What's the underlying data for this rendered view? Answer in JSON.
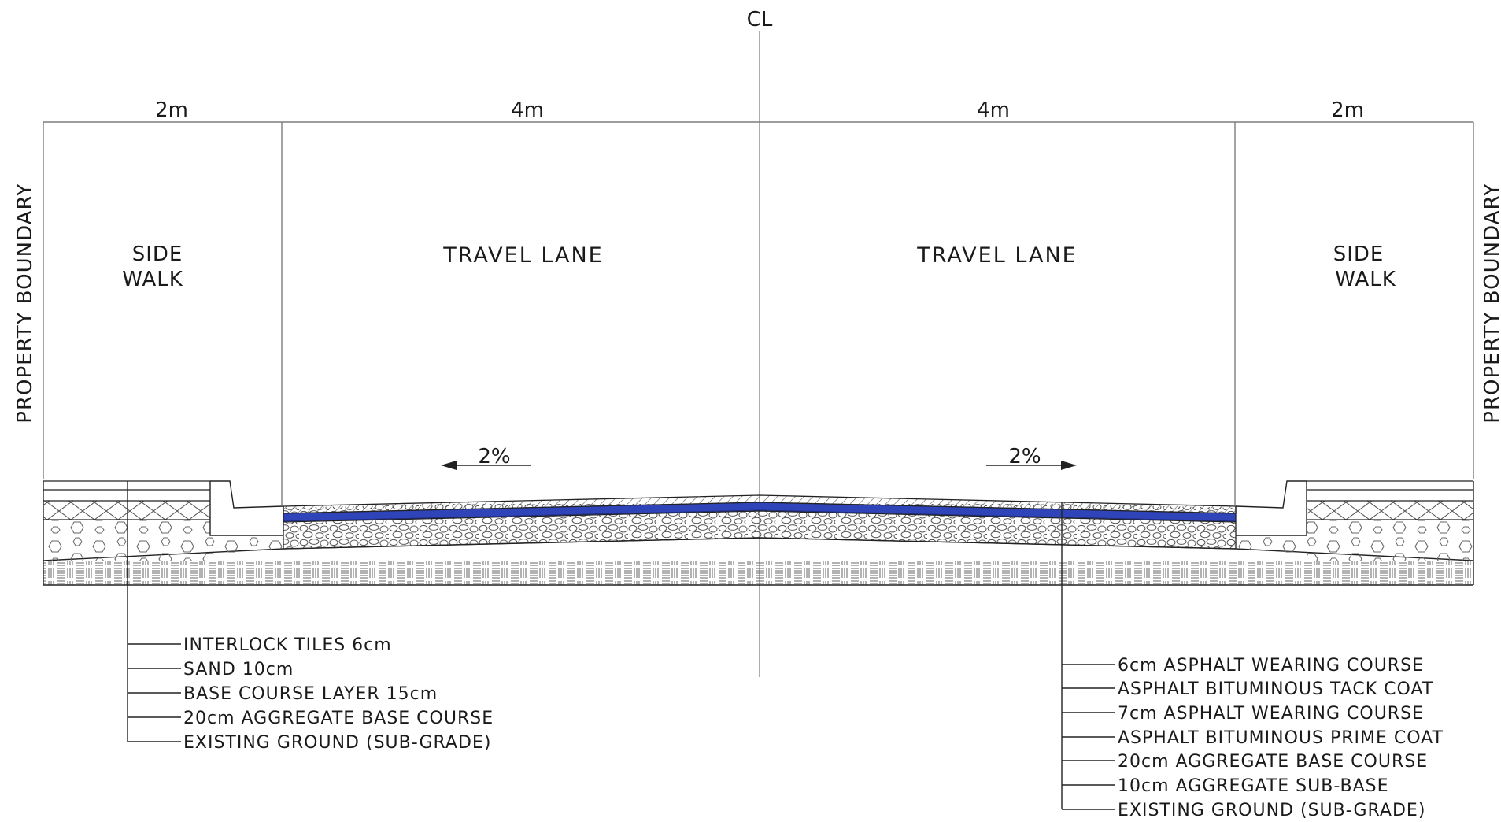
{
  "centerline_label": "CL",
  "dimensions": [
    "2m",
    "4m",
    "4m",
    "2m"
  ],
  "zones": {
    "left_sidewalk": [
      "SIDE",
      "WALK"
    ],
    "left_lane": "TRAVEL LANE",
    "right_lane": "TRAVEL LANE",
    "right_sidewalk": [
      "SIDE",
      "WALK"
    ]
  },
  "boundary_label": "PROPERTY BOUNDARY",
  "cross_slope": {
    "left": "2%",
    "right": "2%"
  },
  "sidewalk_layers": [
    "INTERLOCK TILES 6cm",
    "SAND 10cm",
    "BASE COURSE LAYER 15cm",
    "20cm  AGGREGATE BASE COURSE",
    "EXISTING GROUND (SUB-GRADE)"
  ],
  "roadway_layers": [
    "6cm  ASPHALT WEARING COURSE",
    "ASPHALT BITUMINOUS TACK COAT",
    "7cm  ASPHALT WEARING COURSE",
    "ASPHALT BITUMINOUS PRIME COAT",
    "20cm  AGGREGATE BASE COURSE",
    "10cm  AGGREGATE SUB-BASE",
    "EXISTING GROUND (SUB-GRADE)"
  ],
  "colors": {
    "asphalt_layer": "#2f44b8",
    "asphalt_outline": "#1c2a7a",
    "linework": "#222222",
    "dimension_lines": "#7d7d7d"
  }
}
